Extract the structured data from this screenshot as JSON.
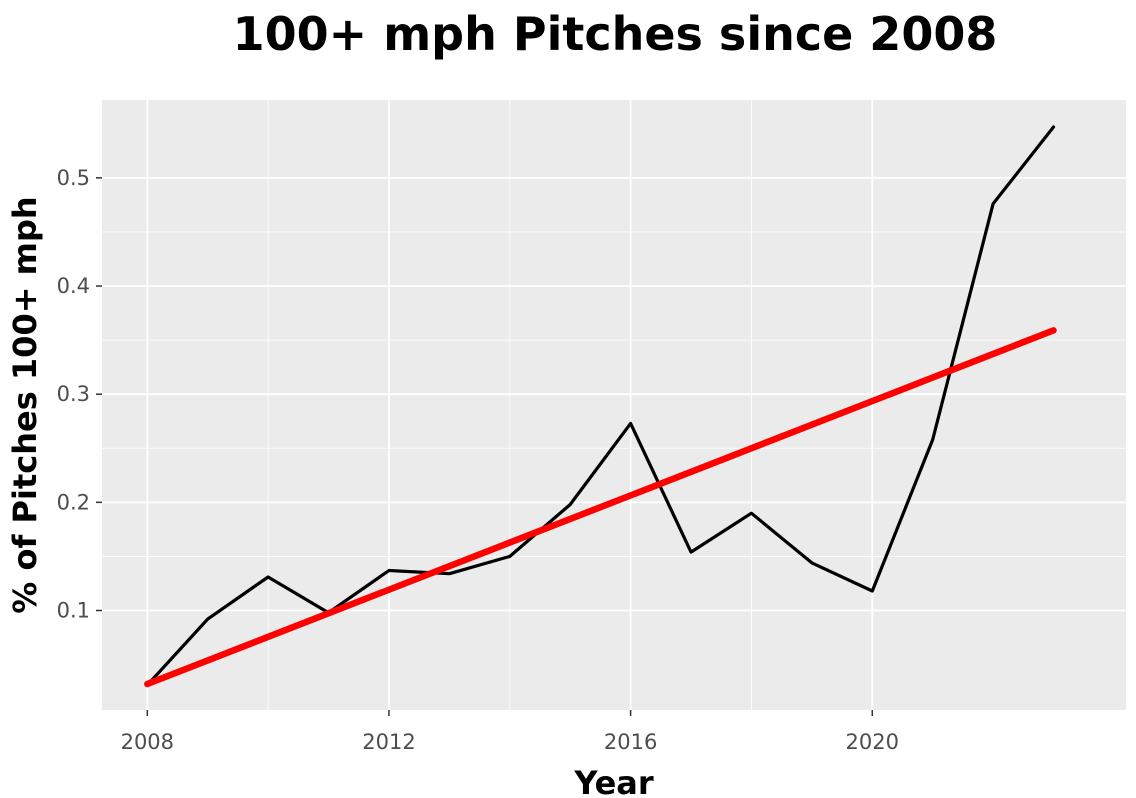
{
  "chart_data": {
    "type": "line",
    "title": "100+ mph Pitches since 2008",
    "xlabel": "Year",
    "ylabel": "% of Pitches 100+ mph",
    "xlim": [
      2007.25,
      2024.2
    ],
    "ylim": [
      0.008,
      0.572
    ],
    "xticks": [
      2008,
      2012,
      2016,
      2020
    ],
    "xtick_labels": [
      "2008",
      "2012",
      "2016",
      "2020"
    ],
    "yticks": [
      0.1,
      0.2,
      0.3,
      0.4,
      0.5
    ],
    "ytick_labels": [
      "0.1",
      "0.2",
      "0.3",
      "0.4",
      "0.5"
    ],
    "grid": true,
    "panel_background": "#ebebeb",
    "grid_color": "#ffffff",
    "series": [
      {
        "color": "#000000",
        "x": [
          2008,
          2009,
          2010,
          2011,
          2012,
          2013,
          2014,
          2015,
          2016,
          2017,
          2018,
          2019,
          2020,
          2021,
          2022,
          2023
        ],
        "y": [
          0.031,
          0.092,
          0.131,
          0.098,
          0.137,
          0.134,
          0.15,
          0.198,
          0.273,
          0.154,
          0.19,
          0.144,
          0.118,
          0.258,
          0.476,
          0.547
        ]
      },
      {
        "color": "#ff0000",
        "x": [
          2008,
          2023
        ],
        "y": [
          0.032,
          0.359
        ]
      }
    ]
  }
}
